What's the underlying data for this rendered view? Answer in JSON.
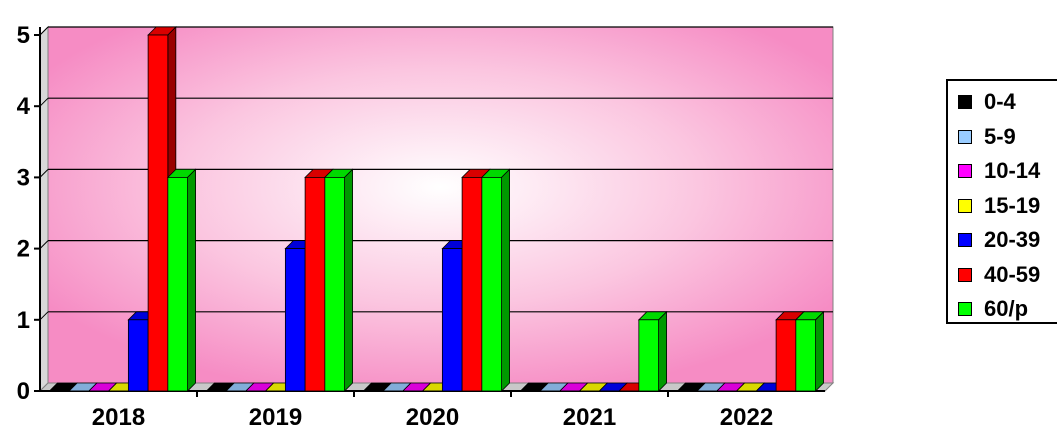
{
  "chart_data": {
    "type": "bar",
    "categories": [
      "2018",
      "2019",
      "2020",
      "2021",
      "2022"
    ],
    "ylim": [
      0,
      5
    ],
    "yticks": [
      "0",
      "1",
      "2",
      "3",
      "4",
      "5"
    ],
    "grid": true,
    "legend_position": "right",
    "series": [
      {
        "name": "0-4",
        "color": "#000000",
        "values": [
          0,
          0,
          0,
          0,
          0
        ]
      },
      {
        "name": "5-9",
        "color": "#99ccff",
        "values": [
          0,
          0,
          0,
          0,
          0
        ]
      },
      {
        "name": "10-14",
        "color": "#ff00ff",
        "values": [
          0,
          0,
          0,
          0,
          0
        ]
      },
      {
        "name": "15-19",
        "color": "#ffff00",
        "values": [
          0,
          0,
          0,
          0,
          0
        ]
      },
      {
        "name": "20-39",
        "color": "#0000ff",
        "values": [
          1,
          2,
          2,
          0,
          0
        ]
      },
      {
        "name": "40-59",
        "color": "#ff0000",
        "values": [
          5,
          3,
          3,
          0,
          1
        ]
      },
      {
        "name": "60/p",
        "color": "#00ff00",
        "values": [
          3,
          3,
          3,
          1,
          1
        ]
      }
    ]
  }
}
